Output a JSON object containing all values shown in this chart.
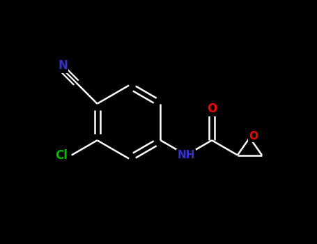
{
  "background_color": "#000000",
  "bond_color": "#ffffff",
  "atom_colors": {
    "N": "#3333cc",
    "O": "#ff0000",
    "Cl": "#00bb00",
    "C": "#ffffff"
  },
  "figsize": [
    4.55,
    3.5
  ],
  "dpi": 100,
  "xlim": [
    0,
    9.1
  ],
  "ylim": [
    0,
    7.0
  ]
}
